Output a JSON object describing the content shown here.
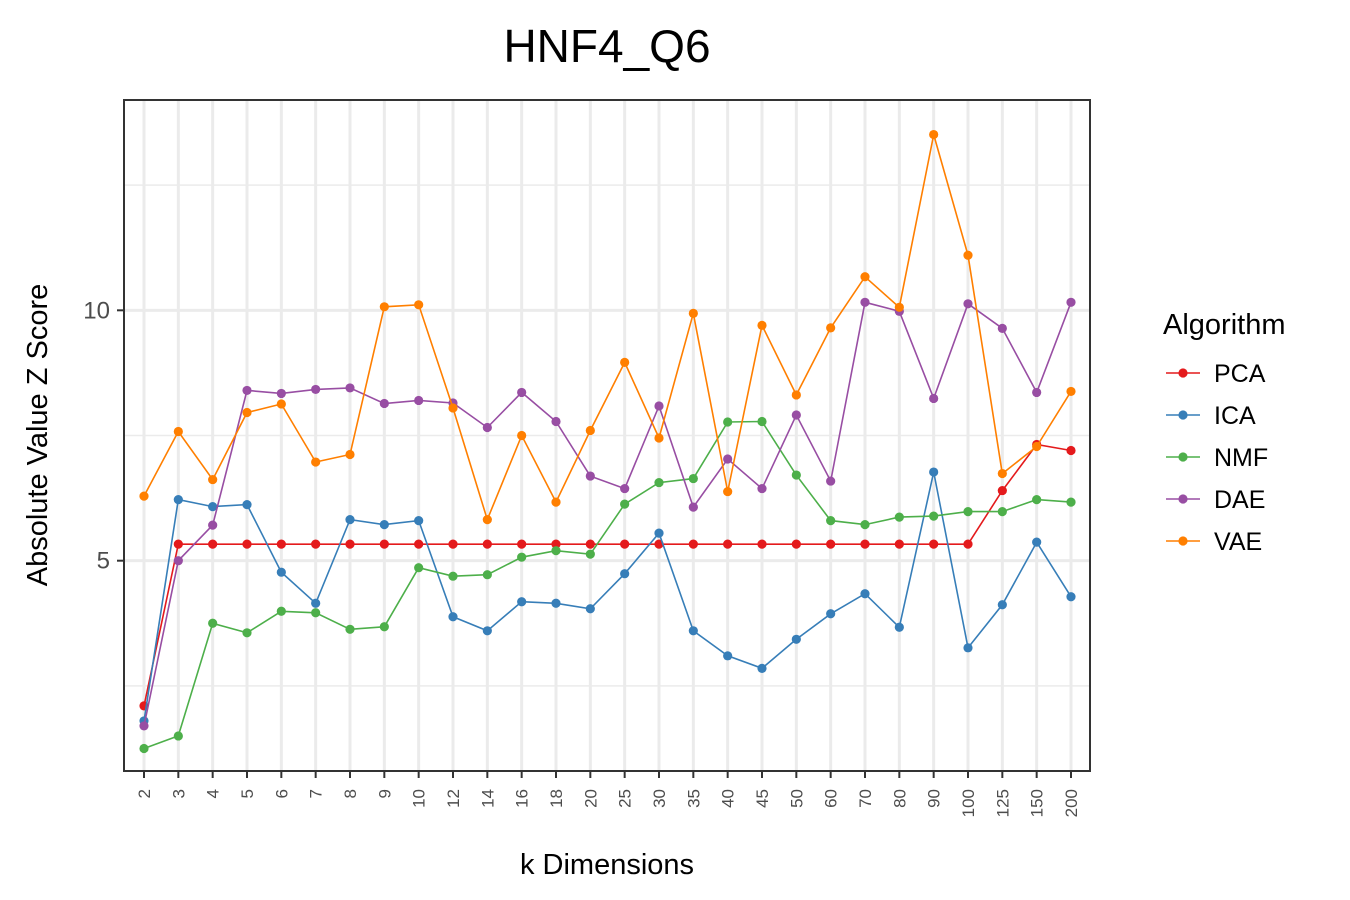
{
  "chart_data": {
    "type": "line",
    "title": "HNF4_Q6",
    "xlabel": "k Dimensions",
    "ylabel": "Absolute Value Z Score",
    "ylim": [
      0.8,
      14.2
    ],
    "yticks": [
      5,
      10
    ],
    "grid": true,
    "legend": {
      "title": "Algorithm",
      "position": "right"
    },
    "categories": [
      "2",
      "3",
      "4",
      "5",
      "6",
      "7",
      "8",
      "9",
      "10",
      "12",
      "14",
      "16",
      "18",
      "20",
      "25",
      "30",
      "35",
      "40",
      "45",
      "50",
      "60",
      "70",
      "80",
      "90",
      "100",
      "125",
      "150",
      "200"
    ],
    "series": [
      {
        "name": "PCA",
        "color": "#e41a1c",
        "values": [
          2.1,
          5.33,
          5.33,
          5.33,
          5.33,
          5.33,
          5.33,
          5.33,
          5.33,
          5.33,
          5.33,
          5.33,
          5.33,
          5.33,
          5.33,
          5.33,
          5.33,
          5.33,
          5.33,
          5.33,
          5.33,
          5.33,
          5.33,
          5.33,
          5.33,
          6.4,
          7.32,
          7.2
        ]
      },
      {
        "name": "ICA",
        "color": "#377eb8",
        "values": [
          1.8,
          6.22,
          6.08,
          6.12,
          4.77,
          4.15,
          5.82,
          5.72,
          5.8,
          3.88,
          3.6,
          4.18,
          4.15,
          4.04,
          4.74,
          5.55,
          3.6,
          3.1,
          2.85,
          3.43,
          3.94,
          4.34,
          3.67,
          6.77,
          3.26,
          4.12,
          5.37,
          4.28
        ]
      },
      {
        "name": "NMF",
        "color": "#4daf4a",
        "values": [
          1.25,
          1.5,
          3.75,
          3.56,
          3.99,
          3.96,
          3.63,
          3.68,
          4.86,
          4.69,
          4.72,
          5.07,
          5.2,
          5.13,
          6.13,
          6.56,
          6.64,
          7.77,
          7.78,
          6.71,
          5.8,
          5.72,
          5.87,
          5.89,
          5.98,
          5.98,
          6.22,
          6.17
        ]
      },
      {
        "name": "DAE",
        "color": "#984ea3",
        "values": [
          1.7,
          5.0,
          5.71,
          8.4,
          8.34,
          8.42,
          8.45,
          8.14,
          8.2,
          8.15,
          7.66,
          8.36,
          7.78,
          6.69,
          6.44,
          8.09,
          6.07,
          7.03,
          6.44,
          7.91,
          6.59,
          10.16,
          9.98,
          8.24,
          10.13,
          9.64,
          8.36,
          10.16
        ]
      },
      {
        "name": "VAE",
        "color": "#ff7f00",
        "values": [
          6.29,
          7.58,
          6.62,
          7.96,
          8.13,
          6.97,
          7.12,
          10.07,
          10.11,
          8.05,
          5.82,
          7.5,
          6.17,
          7.6,
          8.96,
          7.45,
          9.94,
          6.38,
          9.7,
          8.31,
          9.65,
          10.67,
          10.06,
          13.51,
          11.1,
          6.74,
          7.28,
          8.38
        ]
      }
    ]
  }
}
